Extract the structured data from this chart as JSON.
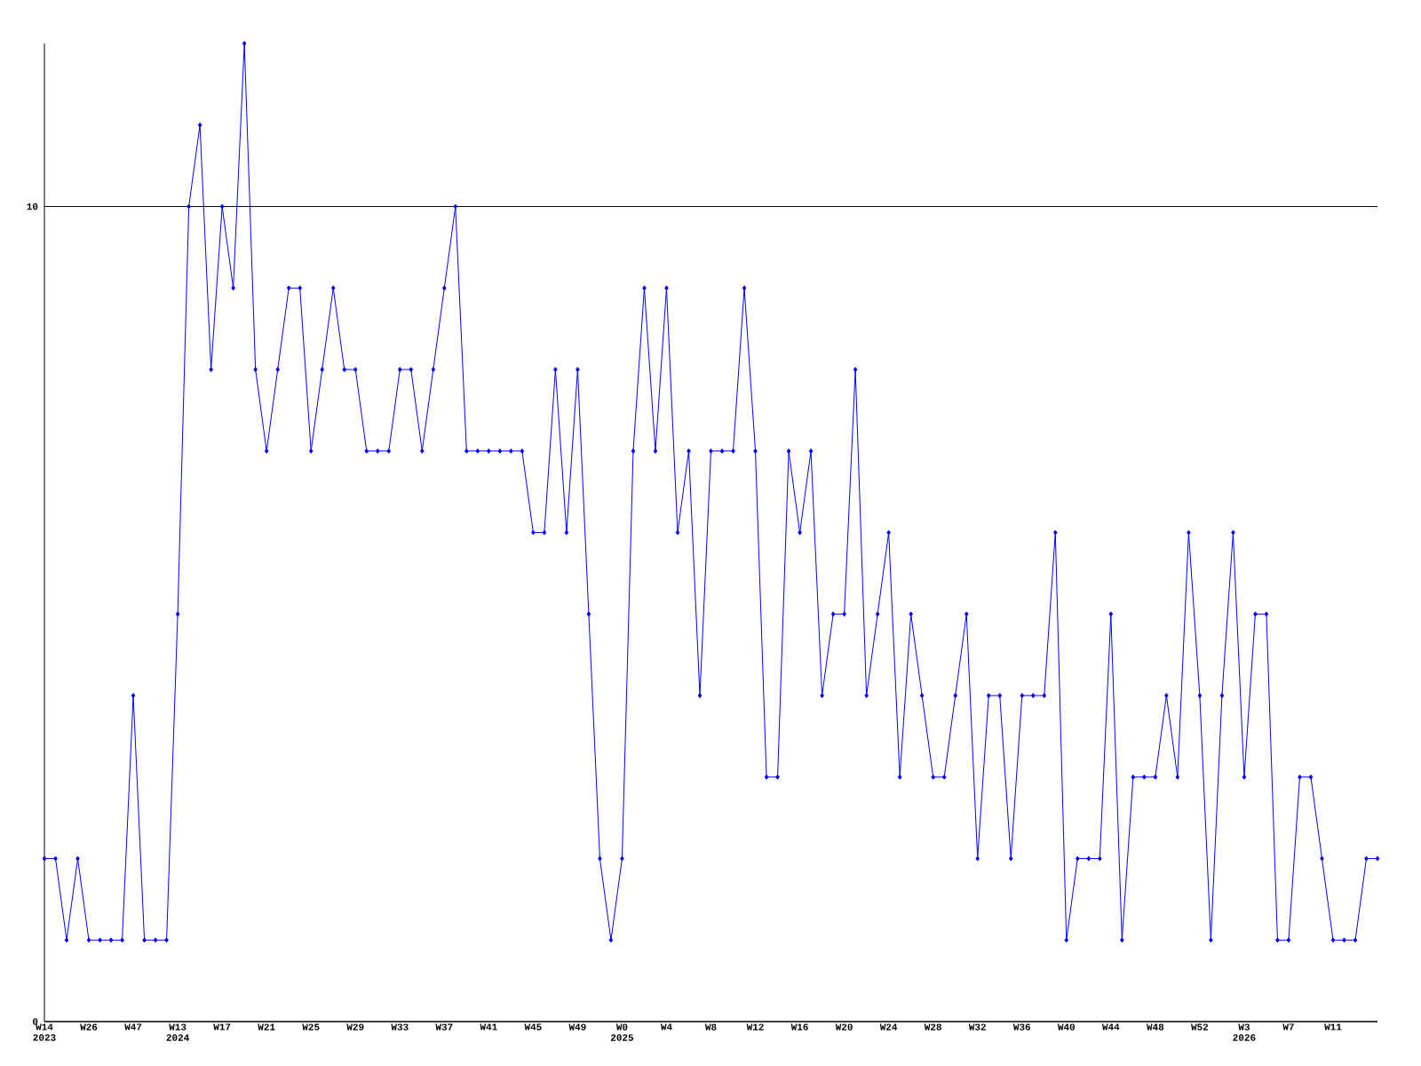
{
  "chart_data": {
    "type": "line",
    "categories": [
      "W14 2023",
      null,
      null,
      null,
      "W26",
      null,
      null,
      null,
      "W47",
      null,
      null,
      null,
      "W13 2024",
      null,
      null,
      null,
      "W17",
      null,
      null,
      null,
      "W21",
      null,
      null,
      null,
      "W25",
      null,
      null,
      null,
      "W29",
      null,
      null,
      null,
      "W33",
      null,
      null,
      null,
      "W37",
      null,
      null,
      null,
      "W41",
      null,
      null,
      null,
      "W45",
      null,
      null,
      null,
      "W49",
      null,
      null,
      null,
      "W0 2025",
      null,
      null,
      null,
      "W4",
      null,
      null,
      null,
      "W8",
      null,
      null,
      null,
      "W12",
      null,
      null,
      null,
      "W16",
      null,
      null,
      null,
      "W20",
      null,
      null,
      null,
      "W24",
      null,
      null,
      null,
      "W28",
      null,
      null,
      null,
      "W32",
      null,
      null,
      null,
      "W36",
      null,
      null,
      null,
      "W40",
      null,
      null,
      null,
      "W44",
      null,
      null,
      null,
      "W48",
      null,
      null,
      null,
      "W52",
      null,
      null,
      null,
      "W3 2026",
      null,
      null,
      null,
      "W7",
      null,
      null,
      null,
      "W11",
      null,
      null,
      null,
      null
    ],
    "values": [
      2,
      2,
      1,
      2,
      1,
      1,
      1,
      1,
      4,
      1,
      1,
      1,
      5,
      10,
      11,
      8,
      10,
      9,
      12,
      8,
      7,
      8,
      9,
      9,
      7,
      8,
      9,
      8,
      8,
      7,
      7,
      7,
      8,
      8,
      7,
      8,
      9,
      10,
      7,
      7,
      7,
      7,
      7,
      7,
      6,
      6,
      8,
      6,
      8,
      5,
      2,
      1,
      2,
      7,
      9,
      7,
      9,
      6,
      7,
      4,
      7,
      7,
      7,
      9,
      7,
      3,
      3,
      7,
      6,
      7,
      4,
      5,
      5,
      8,
      4,
      5,
      6,
      3,
      5,
      4,
      3,
      3,
      4,
      5,
      2,
      4,
      4,
      2,
      4,
      4,
      4,
      6,
      1,
      2,
      2,
      2,
      5,
      1,
      3,
      3,
      3,
      4,
      3,
      6,
      4,
      1,
      4,
      6,
      3,
      5,
      5,
      1,
      1,
      3,
      3,
      2,
      1,
      1,
      1,
      2,
      2
    ],
    "color": "#0000ff",
    "ylim": [
      0,
      12
    ],
    "yticks": [
      0,
      10
    ],
    "grid": "y",
    "marker": "diamond",
    "line_style": "solid"
  }
}
